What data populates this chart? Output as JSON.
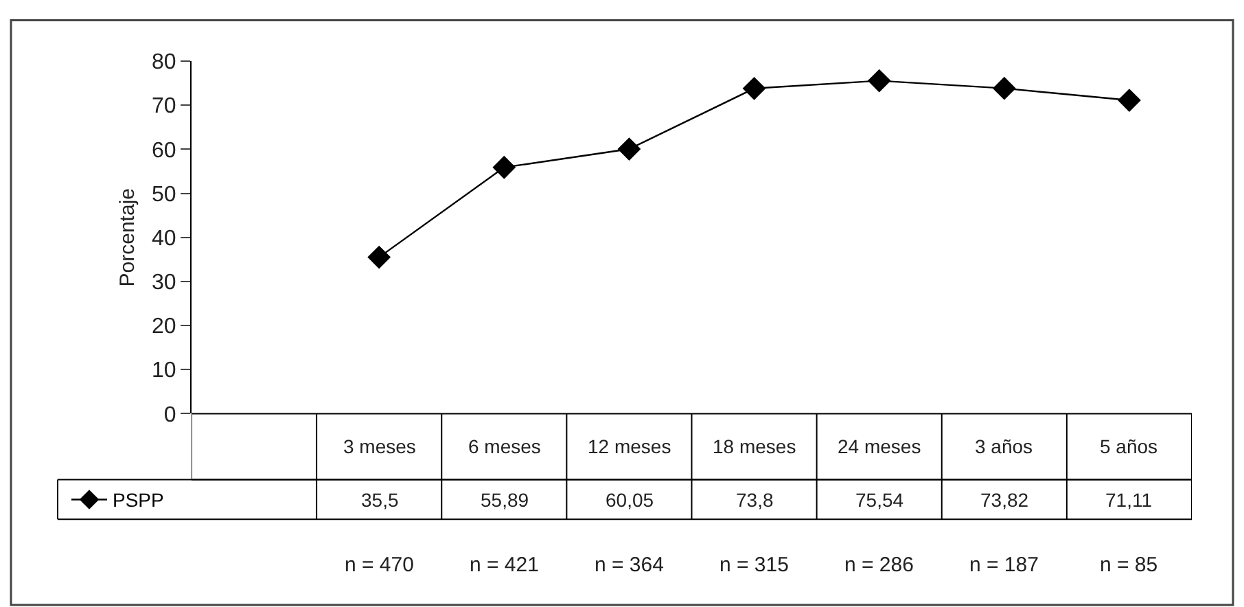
{
  "chart_data": {
    "type": "line",
    "ylabel": "Porcentaje",
    "categories": [
      null,
      "3 meses",
      "6 meses",
      "12 meses",
      "18 meses",
      "24 meses",
      "3 años",
      "5 años"
    ],
    "series": [
      {
        "name": "PSPP",
        "color": "#000000",
        "values": [
          null,
          35.5,
          55.89,
          60.05,
          73.8,
          75.54,
          73.82,
          71.11
        ],
        "value_labels": [
          null,
          "35,5",
          "55,89",
          "60,05",
          "73,8",
          "75,54",
          "73,82",
          "71,11"
        ]
      }
    ],
    "ylim": [
      0,
      80
    ],
    "yticks": [
      0,
      10,
      20,
      30,
      40,
      50,
      60,
      70,
      80
    ],
    "legend": "bottom left",
    "marker": "diamond",
    "line_style": "solid",
    "annotations": [
      "n = 470",
      "n = 421",
      "n = 364",
      "n = 315",
      "n = 286",
      "n = 187",
      "n = 85"
    ]
  }
}
